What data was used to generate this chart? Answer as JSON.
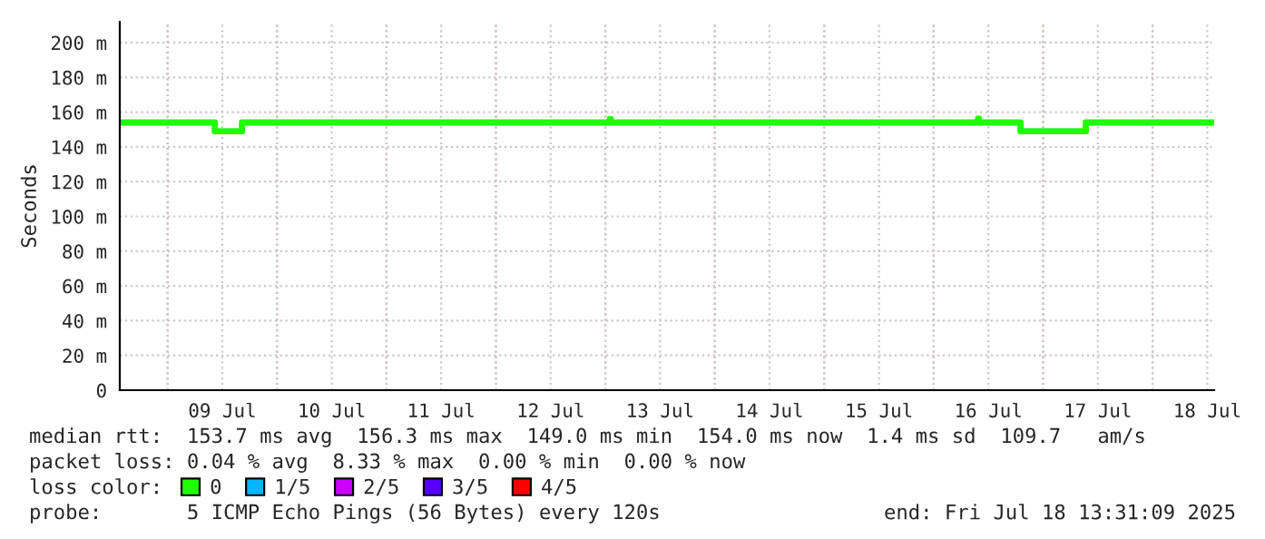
{
  "chart_data": {
    "type": "step",
    "ylabel": "Seconds",
    "x": [
      "2025-07-08T13:31",
      "2025-07-09T10:21",
      "2025-07-09T16:19",
      "2025-07-13T01:00",
      "2025-07-13T01:10",
      "2025-07-16T09:45",
      "2025-07-16T09:55",
      "2025-07-16T19:03",
      "2025-07-17T09:22",
      "2025-07-18T13:31"
    ],
    "series": [
      {
        "name": "0",
        "color": "#20ff00",
        "values": [
          154,
          149,
          154,
          156,
          154,
          156.3,
          154,
          149,
          154,
          154
        ]
      },
      {
        "name": "1/5",
        "color": "#00b8ff",
        "values": [
          null,
          null,
          null,
          null,
          null,
          null,
          null,
          null,
          null,
          null
        ]
      },
      {
        "name": "2/5",
        "color": "#cc00ff",
        "values": [
          null,
          null,
          null,
          null,
          null,
          null,
          null,
          null,
          null,
          null
        ]
      },
      {
        "name": "3/5",
        "color": "#5500ff",
        "values": [
          null,
          null,
          null,
          null,
          null,
          null,
          null,
          null,
          null,
          null
        ]
      },
      {
        "name": "4/5",
        "color": "#ff0000",
        "values": [
          null,
          null,
          null,
          null,
          null,
          null,
          null,
          null,
          null,
          null
        ]
      }
    ],
    "legend_title": "loss color:",
    "legend": "bottom",
    "xlim": [
      "2025-07-08T13:31",
      "2025-07-18T13:31"
    ],
    "xticks": [
      {
        "value": "2025-07-09",
        "label": null
      },
      {
        "value": "2025-07-09T12:00",
        "label": "09 Jul"
      },
      {
        "value": "2025-07-10",
        "label": null
      },
      {
        "value": "2025-07-10T12:00",
        "label": "10 Jul"
      },
      {
        "value": "2025-07-11",
        "label": null
      },
      {
        "value": "2025-07-11T12:00",
        "label": "11 Jul"
      },
      {
        "value": "2025-07-12",
        "label": null
      },
      {
        "value": "2025-07-12T12:00",
        "label": "12 Jul"
      },
      {
        "value": "2025-07-13",
        "label": null
      },
      {
        "value": "2025-07-13T12:00",
        "label": "13 Jul"
      },
      {
        "value": "2025-07-14",
        "label": null
      },
      {
        "value": "2025-07-14T12:00",
        "label": "14 Jul"
      },
      {
        "value": "2025-07-15",
        "label": null
      },
      {
        "value": "2025-07-15T12:00",
        "label": "15 Jul"
      },
      {
        "value": "2025-07-16",
        "label": null
      },
      {
        "value": "2025-07-16T12:00",
        "label": "16 Jul"
      },
      {
        "value": "2025-07-17",
        "label": null
      },
      {
        "value": "2025-07-17T12:00",
        "label": "17 Jul"
      },
      {
        "value": "2025-07-18",
        "label": null
      },
      {
        "value": "2025-07-18T12:00",
        "label": "18 Jul"
      }
    ],
    "ylim": [
      0,
      212
    ],
    "yticks": [
      0,
      {
        "value": 20,
        "label": "20 m"
      },
      {
        "value": 40,
        "label": "40 m"
      },
      {
        "value": 60,
        "label": "60 m"
      },
      {
        "value": 80,
        "label": "80 m"
      },
      {
        "value": 100,
        "label": "100 m"
      },
      {
        "value": 120,
        "label": "120 m"
      },
      {
        "value": 140,
        "label": "140 m"
      },
      {
        "value": 160,
        "label": "160 m"
      },
      {
        "value": 180,
        "label": "180 m"
      },
      {
        "value": 200,
        "label": "200 m"
      }
    ],
    "grid": true,
    "line_style": "solid",
    "marker": "none",
    "annotations": [
      "median rtt:  153.7 ms avg  156.3 ms max  149.0 ms min  154.0 ms now  1.4 ms sd  109.7   am/s",
      "packet loss: 0.04 % avg  8.33 % max  0.00 % min  0.00 % now",
      "probe:       5 ICMP Echo Pings (56 Bytes) every 120s",
      "end: Fri Jul 18 13:31:09 2025"
    ]
  }
}
